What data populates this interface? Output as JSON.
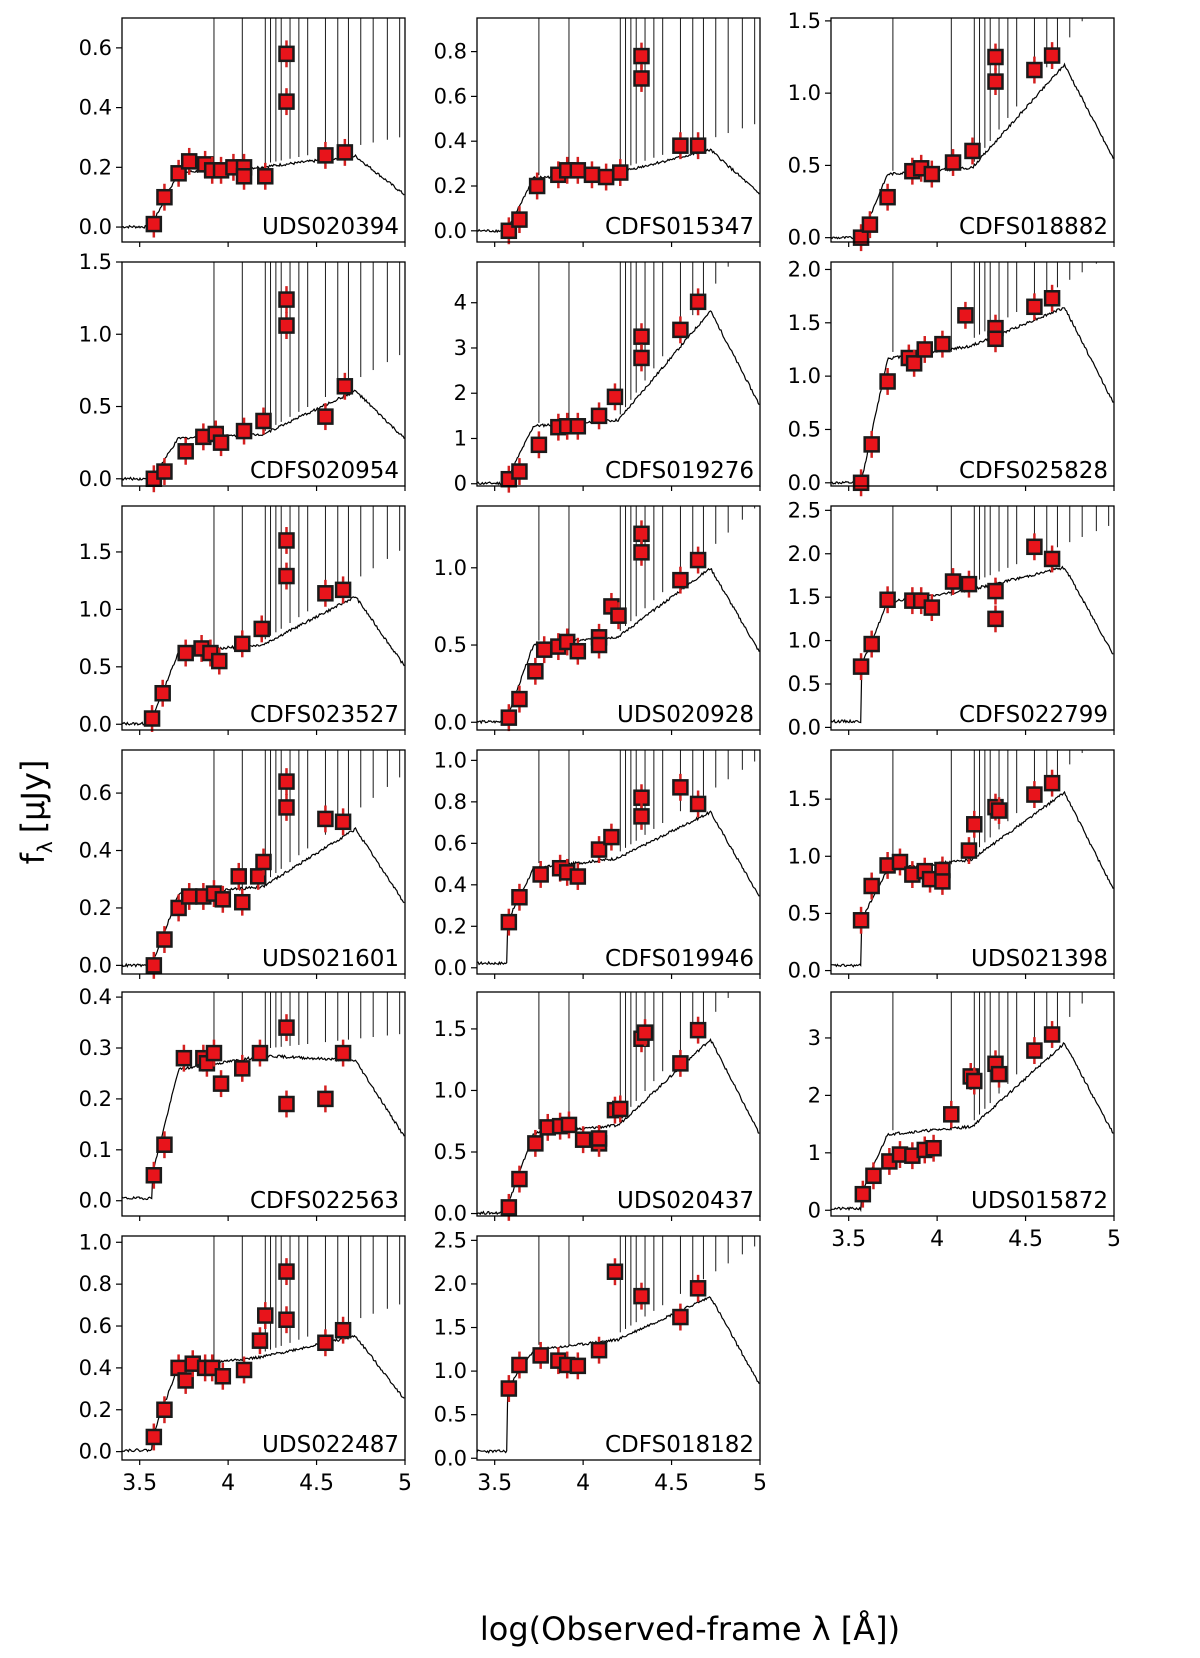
{
  "figure": {
    "ylabel_main": "f",
    "ylabel_sub": "λ",
    "ylabel_unit": "[μJy]",
    "xlabel": "log(Observed-frame λ [Å])",
    "x_tick_labels": [
      "3.5",
      "4",
      "4.5",
      "5"
    ]
  },
  "colors": {
    "point_fill": "#e8141b",
    "point_edge": "#1a1a1a",
    "errorbar": "#d42020",
    "model_line": "#000000"
  },
  "chart_data": [
    {
      "type": "scatter",
      "label": "UDS020394",
      "xlim": [
        3.4,
        5.0
      ],
      "ylim": [
        -0.05,
        0.7
      ],
      "yticks": [
        0.0,
        0.2,
        0.4,
        0.6
      ],
      "ytick_labels": [
        "0.0",
        "0.2",
        "0.4",
        "0.6"
      ],
      "points": [
        [
          3.58,
          0.01
        ],
        [
          3.64,
          0.1
        ],
        [
          3.72,
          0.18
        ],
        [
          3.78,
          0.22
        ],
        [
          3.87,
          0.21
        ],
        [
          3.91,
          0.19
        ],
        [
          3.96,
          0.19
        ],
        [
          4.03,
          0.2
        ],
        [
          4.09,
          0.2
        ],
        [
          4.09,
          0.17
        ],
        [
          4.21,
          0.17
        ],
        [
          4.33,
          0.58
        ],
        [
          4.33,
          0.42
        ],
        [
          4.55,
          0.24
        ],
        [
          4.66,
          0.25
        ]
      ]
    },
    {
      "type": "scatter",
      "label": "CDFS015347",
      "xlim": [
        3.4,
        5.0
      ],
      "ylim": [
        -0.05,
        0.95
      ],
      "yticks": [
        0.0,
        0.2,
        0.4,
        0.6,
        0.8
      ],
      "ytick_labels": [
        "0.0",
        "0.2",
        "0.4",
        "0.6",
        "0.8"
      ],
      "points": [
        [
          3.58,
          0.0
        ],
        [
          3.64,
          0.05
        ],
        [
          3.74,
          0.2
        ],
        [
          3.86,
          0.25
        ],
        [
          3.91,
          0.27
        ],
        [
          3.97,
          0.27
        ],
        [
          4.05,
          0.25
        ],
        [
          4.13,
          0.24
        ],
        [
          4.21,
          0.26
        ],
        [
          4.33,
          0.78
        ],
        [
          4.33,
          0.68
        ],
        [
          4.55,
          0.38
        ],
        [
          4.65,
          0.38
        ]
      ]
    },
    {
      "type": "scatter",
      "label": "CDFS018882",
      "xlim": [
        3.4,
        5.0
      ],
      "ylim": [
        -0.03,
        1.52
      ],
      "yticks": [
        0.0,
        0.5,
        1.0,
        1.5
      ],
      "ytick_labels": [
        "0.0",
        "0.5",
        "1.0",
        "1.5"
      ],
      "points": [
        [
          3.57,
          0.0
        ],
        [
          3.62,
          0.09
        ],
        [
          3.72,
          0.28
        ],
        [
          3.86,
          0.46
        ],
        [
          3.91,
          0.48
        ],
        [
          3.97,
          0.44
        ],
        [
          4.09,
          0.52
        ],
        [
          4.2,
          0.6
        ],
        [
          4.33,
          1.25
        ],
        [
          4.33,
          1.08
        ],
        [
          4.55,
          1.16
        ],
        [
          4.65,
          1.26
        ]
      ]
    },
    {
      "type": "scatter",
      "label": "CDFS020954",
      "xlim": [
        3.4,
        5.0
      ],
      "ylim": [
        -0.05,
        1.5
      ],
      "yticks": [
        0.0,
        0.5,
        1.0,
        1.5
      ],
      "ytick_labels": [
        "0.0",
        "0.5",
        "1.0",
        "1.5"
      ],
      "points": [
        [
          3.58,
          0.0
        ],
        [
          3.64,
          0.05
        ],
        [
          3.76,
          0.19
        ],
        [
          3.86,
          0.29
        ],
        [
          3.93,
          0.31
        ],
        [
          3.96,
          0.25
        ],
        [
          4.09,
          0.33
        ],
        [
          4.2,
          0.4
        ],
        [
          4.33,
          1.24
        ],
        [
          4.33,
          1.06
        ],
        [
          4.55,
          0.43
        ],
        [
          4.66,
          0.64
        ]
      ]
    },
    {
      "type": "scatter",
      "label": "CDFS019276",
      "xlim": [
        3.4,
        5.0
      ],
      "ylim": [
        -0.05,
        4.9
      ],
      "yticks": [
        0,
        1,
        2,
        3,
        4
      ],
      "ytick_labels": [
        "0",
        "1",
        "2",
        "3",
        "4"
      ],
      "points": [
        [
          3.58,
          0.1
        ],
        [
          3.64,
          0.27
        ],
        [
          3.75,
          0.86
        ],
        [
          3.86,
          1.25
        ],
        [
          3.91,
          1.27
        ],
        [
          3.97,
          1.27
        ],
        [
          4.09,
          1.5
        ],
        [
          4.18,
          1.92
        ],
        [
          4.33,
          3.25
        ],
        [
          4.33,
          2.78
        ],
        [
          4.55,
          3.4
        ],
        [
          4.65,
          4.02
        ]
      ]
    },
    {
      "type": "scatter",
      "label": "CDFS025828",
      "xlim": [
        3.4,
        5.0
      ],
      "ylim": [
        -0.03,
        2.07
      ],
      "yticks": [
        0.0,
        0.5,
        1.0,
        1.5,
        2.0
      ],
      "ytick_labels": [
        "0.0",
        "0.5",
        "1.0",
        "1.5",
        "2.0"
      ],
      "points": [
        [
          3.57,
          0.0
        ],
        [
          3.63,
          0.36
        ],
        [
          3.72,
          0.95
        ],
        [
          3.84,
          1.17
        ],
        [
          3.87,
          1.12
        ],
        [
          3.93,
          1.25
        ],
        [
          4.03,
          1.3
        ],
        [
          4.16,
          1.57
        ],
        [
          4.33,
          1.45
        ],
        [
          4.33,
          1.35
        ],
        [
          4.55,
          1.65
        ],
        [
          4.65,
          1.73
        ]
      ]
    },
    {
      "type": "scatter",
      "label": "CDFS023527",
      "xlim": [
        3.4,
        5.0
      ],
      "ylim": [
        -0.05,
        1.9
      ],
      "yticks": [
        0.0,
        0.5,
        1.0,
        1.5
      ],
      "ytick_labels": [
        "0.0",
        "0.5",
        "1.0",
        "1.5"
      ],
      "points": [
        [
          3.57,
          0.05
        ],
        [
          3.63,
          0.27
        ],
        [
          3.76,
          0.62
        ],
        [
          3.85,
          0.66
        ],
        [
          3.9,
          0.62
        ],
        [
          3.95,
          0.55
        ],
        [
          4.08,
          0.7
        ],
        [
          4.19,
          0.83
        ],
        [
          4.33,
          1.6
        ],
        [
          4.33,
          1.29
        ],
        [
          4.55,
          1.14
        ],
        [
          4.65,
          1.17
        ]
      ]
    },
    {
      "type": "scatter",
      "label": "UDS020928",
      "xlim": [
        3.4,
        5.0
      ],
      "ylim": [
        -0.05,
        1.4
      ],
      "yticks": [
        0.0,
        0.5,
        1.0
      ],
      "ytick_labels": [
        "0.0",
        "0.5",
        "1.0"
      ],
      "points": [
        [
          3.58,
          0.03
        ],
        [
          3.64,
          0.15
        ],
        [
          3.73,
          0.33
        ],
        [
          3.78,
          0.47
        ],
        [
          3.86,
          0.49
        ],
        [
          3.91,
          0.52
        ],
        [
          3.97,
          0.46
        ],
        [
          4.09,
          0.55
        ],
        [
          4.09,
          0.5
        ],
        [
          4.16,
          0.75
        ],
        [
          4.2,
          0.69
        ],
        [
          4.33,
          1.22
        ],
        [
          4.33,
          1.1
        ],
        [
          4.55,
          0.92
        ],
        [
          4.65,
          1.05
        ]
      ]
    },
    {
      "type": "scatter",
      "label": "CDFS022799",
      "xlim": [
        3.4,
        5.0
      ],
      "ylim": [
        -0.03,
        2.55
      ],
      "yticks": [
        0.0,
        0.5,
        1.0,
        1.5,
        2.0,
        2.5
      ],
      "ytick_labels": [
        "0.0",
        "0.5",
        "1.0",
        "1.5",
        "2.0",
        "2.5"
      ],
      "points": [
        [
          3.57,
          0.7
        ],
        [
          3.63,
          0.96
        ],
        [
          3.72,
          1.47
        ],
        [
          3.86,
          1.46
        ],
        [
          3.91,
          1.46
        ],
        [
          3.97,
          1.38
        ],
        [
          4.09,
          1.68
        ],
        [
          4.18,
          1.65
        ],
        [
          4.33,
          1.57
        ],
        [
          4.33,
          1.25
        ],
        [
          4.55,
          2.08
        ],
        [
          4.65,
          1.94
        ]
      ]
    },
    {
      "type": "scatter",
      "label": "UDS021601",
      "xlim": [
        3.4,
        5.0
      ],
      "ylim": [
        -0.03,
        0.75
      ],
      "yticks": [
        0.0,
        0.2,
        0.4,
        0.6
      ],
      "ytick_labels": [
        "0.0",
        "0.2",
        "0.4",
        "0.6"
      ],
      "points": [
        [
          3.58,
          0.0
        ],
        [
          3.64,
          0.09
        ],
        [
          3.72,
          0.2
        ],
        [
          3.78,
          0.24
        ],
        [
          3.86,
          0.24
        ],
        [
          3.92,
          0.25
        ],
        [
          3.97,
          0.23
        ],
        [
          4.06,
          0.31
        ],
        [
          4.08,
          0.22
        ],
        [
          4.17,
          0.31
        ],
        [
          4.2,
          0.36
        ],
        [
          4.33,
          0.64
        ],
        [
          4.33,
          0.55
        ],
        [
          4.55,
          0.51
        ],
        [
          4.65,
          0.5
        ]
      ]
    },
    {
      "type": "scatter",
      "label": "CDFS019946",
      "xlim": [
        3.4,
        5.0
      ],
      "ylim": [
        -0.03,
        1.05
      ],
      "yticks": [
        0.0,
        0.2,
        0.4,
        0.6,
        0.8,
        1.0
      ],
      "ytick_labels": [
        "0.0",
        "0.2",
        "0.4",
        "0.6",
        "0.8",
        "1.0"
      ],
      "points": [
        [
          3.58,
          0.22
        ],
        [
          3.64,
          0.34
        ],
        [
          3.76,
          0.45
        ],
        [
          3.87,
          0.48
        ],
        [
          3.91,
          0.46
        ],
        [
          3.97,
          0.44
        ],
        [
          4.09,
          0.57
        ],
        [
          4.16,
          0.63
        ],
        [
          4.33,
          0.82
        ],
        [
          4.33,
          0.73
        ],
        [
          4.55,
          0.87
        ],
        [
          4.65,
          0.79
        ]
      ]
    },
    {
      "type": "scatter",
      "label": "UDS021398",
      "xlim": [
        3.4,
        5.0
      ],
      "ylim": [
        -0.03,
        1.93
      ],
      "yticks": [
        0.0,
        0.5,
        1.0,
        1.5
      ],
      "ytick_labels": [
        "0.0",
        "0.5",
        "1.0",
        "1.5"
      ],
      "points": [
        [
          3.57,
          0.44
        ],
        [
          3.63,
          0.74
        ],
        [
          3.72,
          0.92
        ],
        [
          3.79,
          0.95
        ],
        [
          3.86,
          0.84
        ],
        [
          3.93,
          0.87
        ],
        [
          3.96,
          0.8
        ],
        [
          4.03,
          0.88
        ],
        [
          4.03,
          0.78
        ],
        [
          4.18,
          1.05
        ],
        [
          4.21,
          1.28
        ],
        [
          4.33,
          1.43
        ],
        [
          4.35,
          1.4
        ],
        [
          4.55,
          1.54
        ],
        [
          4.65,
          1.64
        ]
      ]
    },
    {
      "type": "scatter",
      "label": "CDFS022563",
      "xlim": [
        3.4,
        5.0
      ],
      "ylim": [
        -0.03,
        0.41
      ],
      "yticks": [
        0.0,
        0.1,
        0.2,
        0.3,
        0.4
      ],
      "ytick_labels": [
        "0.0",
        "0.1",
        "0.2",
        "0.3",
        "0.4"
      ],
      "points": [
        [
          3.58,
          0.05
        ],
        [
          3.64,
          0.11
        ],
        [
          3.75,
          0.28
        ],
        [
          3.86,
          0.28
        ],
        [
          3.88,
          0.27
        ],
        [
          3.92,
          0.29
        ],
        [
          3.96,
          0.23
        ],
        [
          4.08,
          0.26
        ],
        [
          4.18,
          0.29
        ],
        [
          4.33,
          0.34
        ],
        [
          4.33,
          0.19
        ],
        [
          4.55,
          0.2
        ],
        [
          4.65,
          0.29
        ]
      ]
    },
    {
      "type": "scatter",
      "label": "UDS020437",
      "xlim": [
        3.4,
        5.0
      ],
      "ylim": [
        -0.02,
        1.8
      ],
      "yticks": [
        0.0,
        0.5,
        1.0,
        1.5
      ],
      "ytick_labels": [
        "0.0",
        "0.5",
        "1.0",
        "1.5"
      ],
      "points": [
        [
          3.58,
          0.05
        ],
        [
          3.64,
          0.28
        ],
        [
          3.73,
          0.57
        ],
        [
          3.8,
          0.7
        ],
        [
          3.87,
          0.71
        ],
        [
          3.92,
          0.72
        ],
        [
          4.0,
          0.6
        ],
        [
          4.09,
          0.57
        ],
        [
          4.09,
          0.61
        ],
        [
          4.18,
          0.84
        ],
        [
          4.21,
          0.85
        ],
        [
          4.33,
          1.42
        ],
        [
          4.35,
          1.47
        ],
        [
          4.55,
          1.22
        ],
        [
          4.65,
          1.49
        ]
      ]
    },
    {
      "type": "scatter",
      "label": "UDS015872",
      "xlim": [
        3.4,
        5.0
      ],
      "ylim": [
        -0.1,
        3.8
      ],
      "yticks": [
        0,
        1,
        2,
        3
      ],
      "ytick_labels": [
        "0",
        "1",
        "2",
        "3"
      ],
      "points": [
        [
          3.58,
          0.28
        ],
        [
          3.64,
          0.6
        ],
        [
          3.73,
          0.85
        ],
        [
          3.79,
          0.97
        ],
        [
          3.86,
          0.95
        ],
        [
          3.93,
          1.05
        ],
        [
          3.98,
          1.08
        ],
        [
          4.08,
          1.67
        ],
        [
          4.19,
          2.33
        ],
        [
          4.21,
          2.25
        ],
        [
          4.33,
          2.55
        ],
        [
          4.35,
          2.37
        ],
        [
          4.55,
          2.78
        ],
        [
          4.65,
          3.06
        ]
      ]
    },
    {
      "type": "scatter",
      "label": "UDS022487",
      "xlim": [
        3.4,
        5.0
      ],
      "ylim": [
        -0.04,
        1.03
      ],
      "yticks": [
        0.0,
        0.2,
        0.4,
        0.6,
        0.8,
        1.0
      ],
      "ytick_labels": [
        "0.0",
        "0.2",
        "0.4",
        "0.6",
        "0.8",
        "1.0"
      ],
      "points": [
        [
          3.58,
          0.07
        ],
        [
          3.64,
          0.2
        ],
        [
          3.72,
          0.4
        ],
        [
          3.76,
          0.34
        ],
        [
          3.8,
          0.42
        ],
        [
          3.87,
          0.4
        ],
        [
          3.91,
          0.4
        ],
        [
          3.97,
          0.36
        ],
        [
          4.09,
          0.39
        ],
        [
          4.18,
          0.53
        ],
        [
          4.21,
          0.65
        ],
        [
          4.33,
          0.86
        ],
        [
          4.33,
          0.63
        ],
        [
          4.55,
          0.52
        ],
        [
          4.65,
          0.58
        ]
      ]
    },
    {
      "type": "scatter",
      "label": "CDFS018182",
      "xlim": [
        3.4,
        5.0
      ],
      "ylim": [
        -0.02,
        2.55
      ],
      "yticks": [
        0.0,
        0.5,
        1.0,
        1.5,
        2.0,
        2.5
      ],
      "ytick_labels": [
        "0.0",
        "0.5",
        "1.0",
        "1.5",
        "2.0",
        "2.5"
      ],
      "points": [
        [
          3.58,
          0.8
        ],
        [
          3.64,
          1.07
        ],
        [
          3.76,
          1.18
        ],
        [
          3.86,
          1.12
        ],
        [
          3.91,
          1.07
        ],
        [
          3.97,
          1.06
        ],
        [
          4.09,
          1.24
        ],
        [
          4.18,
          2.14
        ],
        [
          4.33,
          1.86
        ],
        [
          4.55,
          1.62
        ],
        [
          4.65,
          1.95
        ]
      ]
    }
  ]
}
